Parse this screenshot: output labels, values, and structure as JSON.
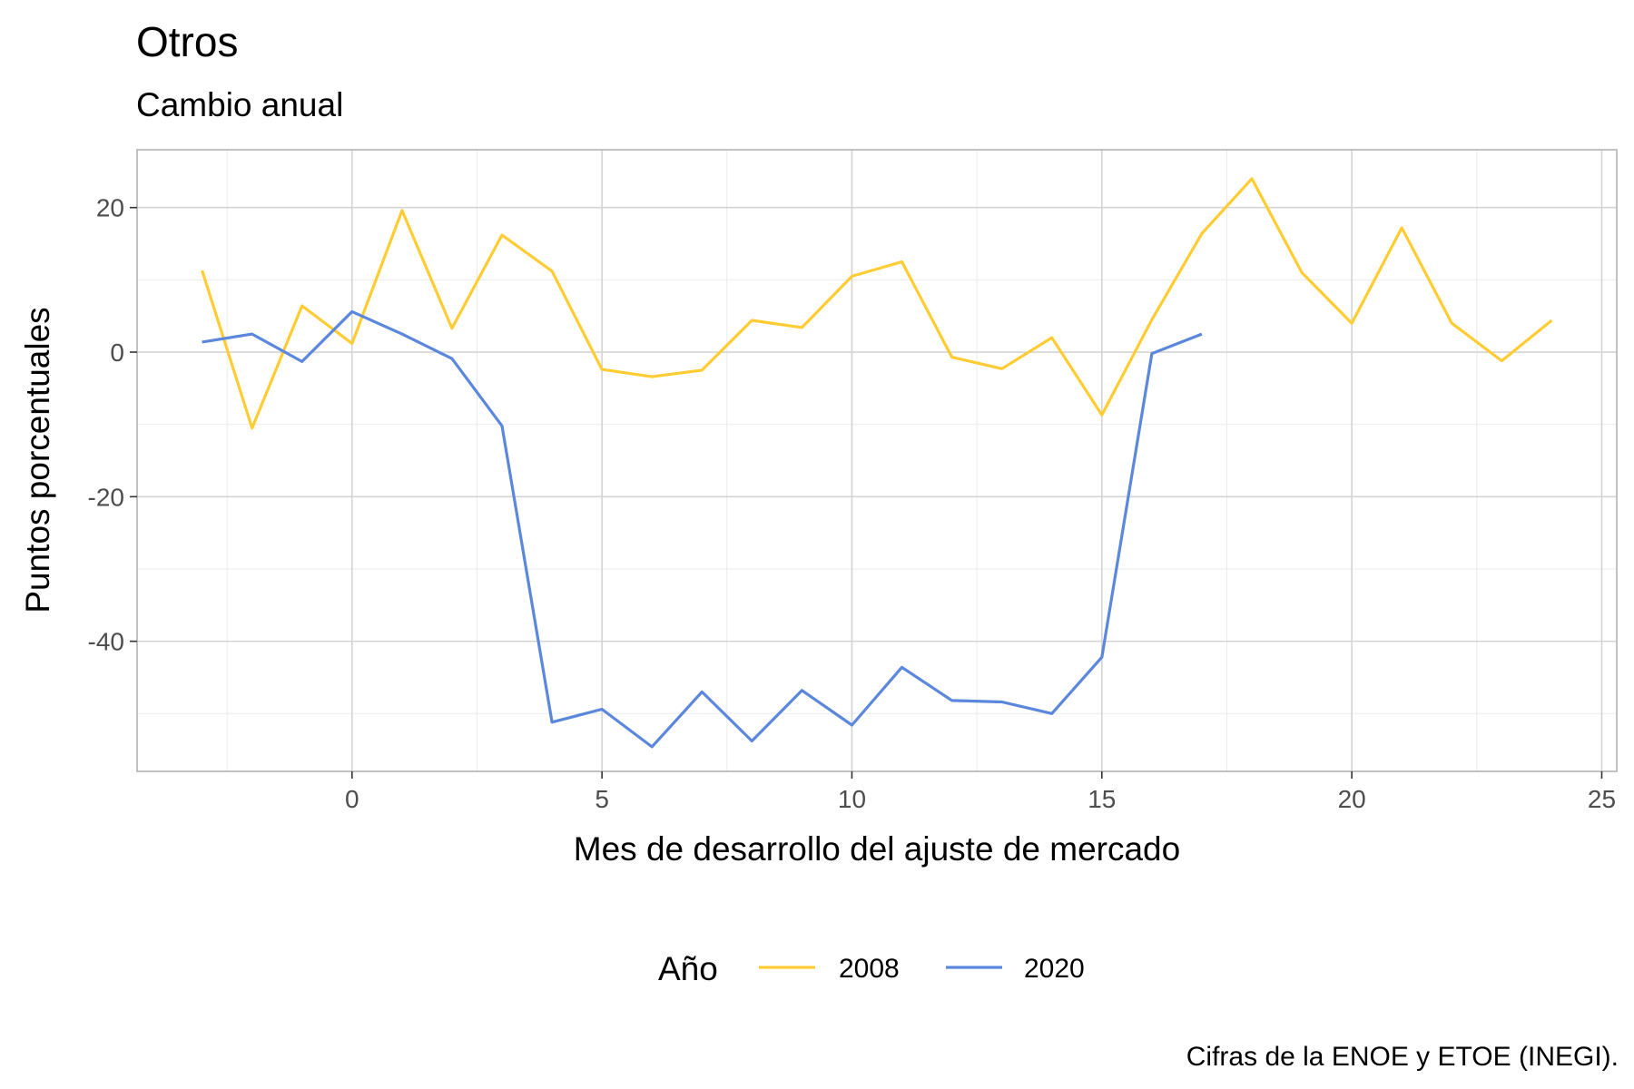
{
  "chart_data": {
    "type": "line",
    "title": "Otros",
    "subtitle": "Cambio anual",
    "xlabel": "Mes de desarrollo del ajuste de mercado",
    "ylabel": "Puntos porcentuales",
    "caption": "Cifras de la ENOE y ETOE (INEGI).",
    "xlim": [
      -4.3,
      25.3
    ],
    "ylim": [
      -58,
      28
    ],
    "x_ticks": [
      0,
      5,
      10,
      15,
      20,
      25
    ],
    "y_ticks": [
      20,
      0,
      -20,
      -40
    ],
    "grid": true,
    "legend": {
      "title": "Año",
      "position": "bottom"
    },
    "series": [
      {
        "name": "2008",
        "color": "#FFCC33",
        "x": [
          -3,
          -2,
          -1,
          0,
          1,
          2,
          3,
          4,
          5,
          6,
          7,
          8,
          9,
          10,
          11,
          12,
          13,
          14,
          15,
          16,
          17,
          18,
          19,
          20,
          21,
          22,
          23,
          24
        ],
        "y": [
          11.3,
          -10.5,
          6.4,
          1.2,
          19.6,
          3.3,
          16.2,
          11.2,
          -2.4,
          -3.4,
          -2.5,
          4.4,
          3.4,
          10.5,
          12.5,
          -0.7,
          -2.3,
          2.0,
          -8.7,
          4.5,
          16.4,
          24.0,
          11.0,
          4.0,
          17.2,
          4.0,
          -1.2,
          4.4
        ]
      },
      {
        "name": "2020",
        "color": "#5B87DD",
        "x": [
          -3,
          -2,
          -1,
          0,
          1,
          2,
          3,
          4,
          5,
          6,
          7,
          8,
          9,
          10,
          11,
          12,
          13,
          14,
          15,
          16,
          17
        ],
        "y": [
          1.4,
          2.5,
          -1.3,
          5.6,
          2.5,
          -0.9,
          -10.2,
          -51.2,
          -49.4,
          -54.6,
          -47.0,
          -53.8,
          -46.8,
          -51.6,
          -43.6,
          -48.2,
          -48.4,
          -50.0,
          -42.2,
          -0.2,
          2.5
        ]
      }
    ]
  }
}
